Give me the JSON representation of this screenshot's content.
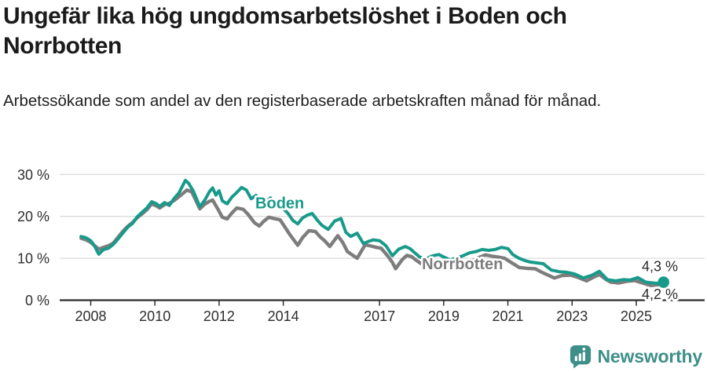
{
  "header": {
    "title_lines": [
      "Ungefär lika hög ungdomsarbetslöshet i Boden och",
      "Norrbotten"
    ],
    "subtitle": "Arbetssökande som andel av den registerbaserade arbetskraften månad för månad."
  },
  "chart_data": {
    "type": "line",
    "unit": "%",
    "grid": true,
    "colors": {
      "boden": "#189a8a",
      "norrbotten": "#7d7d7d",
      "gridline": "#dcdcdc",
      "axis": "#2b2b2b"
    },
    "x_axis": {
      "ticks": [
        2008,
        2010,
        2012,
        2014,
        2017,
        2019,
        2021,
        2023,
        2025
      ],
      "range": [
        2007.55,
        2026.1
      ]
    },
    "y_axis": {
      "ticks": [
        0,
        10,
        20,
        30
      ],
      "tick_suffix": " %",
      "range": [
        0,
        32
      ]
    },
    "series": [
      {
        "name": "Norrbotten",
        "color": "#7d7d7d",
        "width": 4.4,
        "end_label": "4,2 %",
        "end_label_offset": 21,
        "end_dot": false,
        "points": [
          [
            2007.7,
            14.8
          ],
          [
            2007.85,
            14.4
          ],
          [
            2008,
            13.8
          ],
          [
            2008.1,
            13.1
          ],
          [
            2008.25,
            12.2
          ],
          [
            2008.4,
            12.6
          ],
          [
            2008.55,
            13
          ],
          [
            2008.7,
            13.6
          ],
          [
            2008.85,
            15
          ],
          [
            2009,
            16.4
          ],
          [
            2009.15,
            17.6
          ],
          [
            2009.3,
            18.5
          ],
          [
            2009.45,
            19.7
          ],
          [
            2009.6,
            20.6
          ],
          [
            2009.75,
            21.6
          ],
          [
            2009.9,
            23
          ],
          [
            2010.05,
            22.5
          ],
          [
            2010.15,
            22
          ],
          [
            2010.3,
            22.8
          ],
          [
            2010.45,
            23.1
          ],
          [
            2010.6,
            23.8
          ],
          [
            2010.8,
            25
          ],
          [
            2011,
            26.3
          ],
          [
            2011.15,
            25.8
          ],
          [
            2011.4,
            21.8
          ],
          [
            2011.55,
            22.9
          ],
          [
            2011.7,
            23.6
          ],
          [
            2011.8,
            23.9
          ],
          [
            2011.95,
            21.9
          ],
          [
            2012.1,
            19.8
          ],
          [
            2012.25,
            19.4
          ],
          [
            2012.4,
            20.8
          ],
          [
            2012.55,
            22
          ],
          [
            2012.75,
            21.7
          ],
          [
            2012.9,
            20.5
          ],
          [
            2013.1,
            18.5
          ],
          [
            2013.25,
            17.7
          ],
          [
            2013.4,
            18.9
          ],
          [
            2013.55,
            19.8
          ],
          [
            2013.7,
            19.5
          ],
          [
            2013.9,
            19.2
          ],
          [
            2014.05,
            17.5
          ],
          [
            2014.2,
            15.7
          ],
          [
            2014.45,
            13.1
          ],
          [
            2014.6,
            14.9
          ],
          [
            2014.8,
            16.6
          ],
          [
            2015,
            16.4
          ],
          [
            2015.15,
            15.1
          ],
          [
            2015.3,
            14.1
          ],
          [
            2015.45,
            12.8
          ],
          [
            2015.7,
            15.4
          ],
          [
            2015.85,
            13.8
          ],
          [
            2016,
            11.6
          ],
          [
            2016.15,
            10.8
          ],
          [
            2016.3,
            10
          ],
          [
            2016.55,
            13.2
          ],
          [
            2016.75,
            12.9
          ],
          [
            2016.9,
            12.6
          ],
          [
            2017.05,
            12.4
          ],
          [
            2017.25,
            10.6
          ],
          [
            2017.4,
            9
          ],
          [
            2017.5,
            7.5
          ],
          [
            2017.7,
            9.6
          ],
          [
            2017.85,
            10.7
          ],
          [
            2018,
            10.4
          ],
          [
            2018.15,
            9.5
          ],
          [
            2018.3,
            8.7
          ],
          [
            2018.5,
            8.3
          ],
          [
            2018.7,
            8.9
          ],
          [
            2018.9,
            9.1
          ],
          [
            2019.1,
            8.7
          ],
          [
            2019.3,
            8.2
          ],
          [
            2019.5,
            8.5
          ],
          [
            2019.7,
            8.9
          ],
          [
            2019.9,
            9.4
          ],
          [
            2020.1,
            10.2
          ],
          [
            2020.3,
            10.8
          ],
          [
            2020.5,
            10.5
          ],
          [
            2020.7,
            10.3
          ],
          [
            2020.9,
            10
          ],
          [
            2021.1,
            9
          ],
          [
            2021.35,
            7.8
          ],
          [
            2021.6,
            7.6
          ],
          [
            2021.85,
            7.5
          ],
          [
            2022.1,
            6.5
          ],
          [
            2022.3,
            5.8
          ],
          [
            2022.45,
            5.3
          ],
          [
            2022.7,
            5.9
          ],
          [
            2022.95,
            6
          ],
          [
            2023.2,
            5.4
          ],
          [
            2023.45,
            4.6
          ],
          [
            2023.7,
            5.6
          ],
          [
            2023.85,
            6.1
          ],
          [
            2024.05,
            5
          ],
          [
            2024.2,
            4.3
          ],
          [
            2024.45,
            4.1
          ],
          [
            2024.7,
            4.5
          ],
          [
            2024.95,
            4.7
          ],
          [
            2025.2,
            4.1
          ],
          [
            2025.45,
            3.5
          ],
          [
            2025.7,
            3.7
          ],
          [
            2025.85,
            4.2
          ]
        ]
      },
      {
        "name": "Boden",
        "color": "#189a8a",
        "width": 4,
        "end_label": "4,3 %",
        "end_label_offset": -14,
        "end_dot": true,
        "points": [
          [
            2007.7,
            15.2
          ],
          [
            2007.85,
            14.9
          ],
          [
            2008,
            14.2
          ],
          [
            2008.1,
            13.2
          ],
          [
            2008.25,
            11
          ],
          [
            2008.4,
            12.1
          ],
          [
            2008.55,
            12.4
          ],
          [
            2008.7,
            13.3
          ],
          [
            2008.85,
            14.6
          ],
          [
            2009,
            16
          ],
          [
            2009.15,
            17.4
          ],
          [
            2009.3,
            18.3
          ],
          [
            2009.45,
            19.9
          ],
          [
            2009.6,
            21
          ],
          [
            2009.75,
            22
          ],
          [
            2009.9,
            23.5
          ],
          [
            2010.05,
            23
          ],
          [
            2010.15,
            22.4
          ],
          [
            2010.3,
            23.3
          ],
          [
            2010.45,
            22.6
          ],
          [
            2010.6,
            24.3
          ],
          [
            2010.75,
            25.6
          ],
          [
            2010.95,
            28.6
          ],
          [
            2011.05,
            27.9
          ],
          [
            2011.2,
            26
          ],
          [
            2011.4,
            22.3
          ],
          [
            2011.55,
            23.8
          ],
          [
            2011.7,
            25.9
          ],
          [
            2011.8,
            26.8
          ],
          [
            2011.9,
            25.1
          ],
          [
            2012,
            26.1
          ],
          [
            2012.1,
            23.7
          ],
          [
            2012.25,
            23
          ],
          [
            2012.4,
            24.6
          ],
          [
            2012.55,
            25.7
          ],
          [
            2012.7,
            26.9
          ],
          [
            2012.85,
            26.3
          ],
          [
            2013,
            24.2
          ],
          [
            2013.15,
            25
          ],
          [
            2013.3,
            22.1
          ],
          [
            2013.45,
            23.4
          ],
          [
            2013.6,
            24.4
          ],
          [
            2013.75,
            23.2
          ],
          [
            2013.9,
            22.4
          ],
          [
            2014.05,
            21.5
          ],
          [
            2014.15,
            20.7
          ],
          [
            2014.3,
            19
          ],
          [
            2014.45,
            18.2
          ],
          [
            2014.6,
            19.6
          ],
          [
            2014.75,
            20.3
          ],
          [
            2014.9,
            20.7
          ],
          [
            2015.05,
            19.2
          ],
          [
            2015.2,
            17.9
          ],
          [
            2015.4,
            16.9
          ],
          [
            2015.6,
            18.9
          ],
          [
            2015.8,
            19.5
          ],
          [
            2015.95,
            16.2
          ],
          [
            2016.1,
            15.2
          ],
          [
            2016.3,
            16
          ],
          [
            2016.5,
            13.5
          ],
          [
            2016.65,
            14
          ],
          [
            2016.8,
            14.4
          ],
          [
            2017,
            14.2
          ],
          [
            2017.2,
            13
          ],
          [
            2017.4,
            10.6
          ],
          [
            2017.6,
            12.2
          ],
          [
            2017.8,
            12.8
          ],
          [
            2017.95,
            12.3
          ],
          [
            2018.1,
            11.3
          ],
          [
            2018.25,
            10.3
          ],
          [
            2018.45,
            9.9
          ],
          [
            2018.65,
            10.6
          ],
          [
            2018.85,
            10.9
          ],
          [
            2019,
            10.3
          ],
          [
            2019.2,
            9.6
          ],
          [
            2019.4,
            10.1
          ],
          [
            2019.6,
            10.6
          ],
          [
            2019.8,
            11.3
          ],
          [
            2020,
            11.6
          ],
          [
            2020.2,
            12.1
          ],
          [
            2020.4,
            11.9
          ],
          [
            2020.6,
            12.1
          ],
          [
            2020.8,
            12.6
          ],
          [
            2021,
            12.3
          ],
          [
            2021.15,
            10.9
          ],
          [
            2021.35,
            10
          ],
          [
            2021.55,
            9.4
          ],
          [
            2021.7,
            9.1
          ],
          [
            2021.9,
            8.9
          ],
          [
            2022.1,
            8.7
          ],
          [
            2022.35,
            7.2
          ],
          [
            2022.6,
            6.8
          ],
          [
            2022.8,
            6.7
          ],
          [
            2023,
            6.4
          ],
          [
            2023.1,
            6.2
          ],
          [
            2023.35,
            5.3
          ],
          [
            2023.6,
            5.9
          ],
          [
            2023.85,
            6.9
          ],
          [
            2024.1,
            4.9
          ],
          [
            2024.35,
            4.6
          ],
          [
            2024.6,
            4.9
          ],
          [
            2024.8,
            4.8
          ],
          [
            2025.05,
            5.4
          ],
          [
            2025.3,
            4.3
          ],
          [
            2025.55,
            4.1
          ],
          [
            2025.7,
            4
          ],
          [
            2025.85,
            4.3
          ]
        ]
      }
    ],
    "series_labels": [
      {
        "text": "Boden",
        "x_t": 2013.13,
        "y_v": 21.9,
        "color": "#189a8a"
      },
      {
        "text": "Norrbotten",
        "x_t": 2018.32,
        "y_v": 7.4,
        "color": "#7d7d7d"
      }
    ]
  },
  "footer": {
    "brand": "Newsworthy",
    "logo_color": "#3d8f88"
  }
}
